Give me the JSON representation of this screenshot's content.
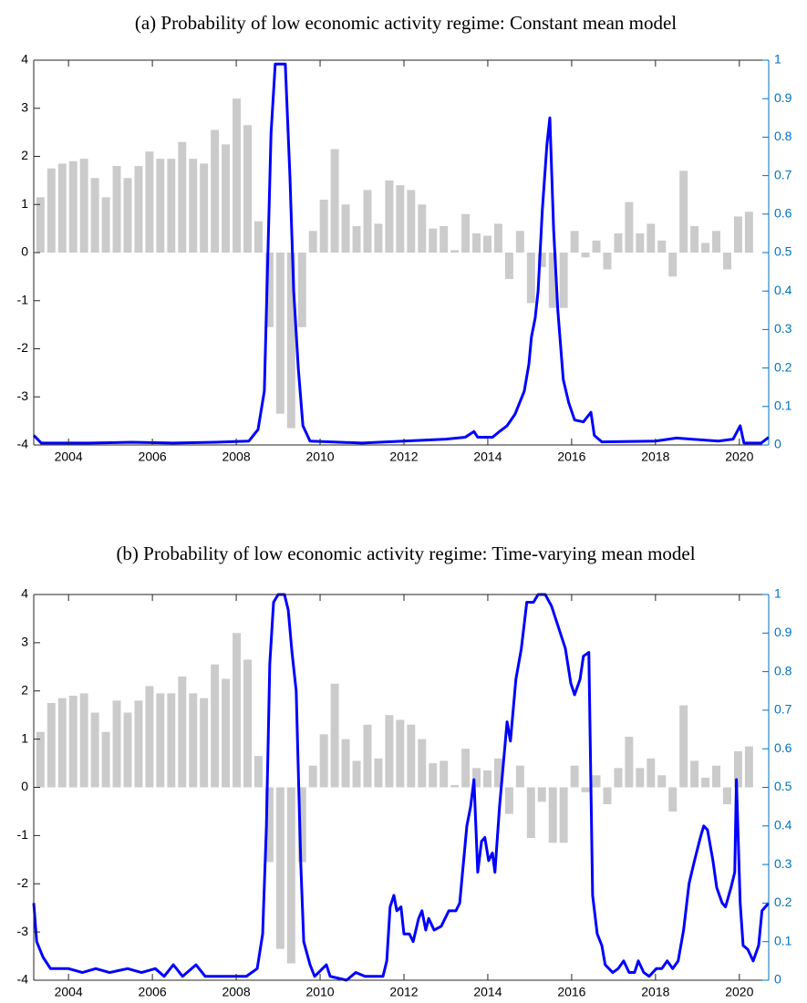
{
  "chart_data": [
    {
      "type": "combo",
      "title": "(a) Probability of low economic activity regime: Constant mean model",
      "xlim": [
        2003.17,
        2020.7
      ],
      "xticks": [
        2004,
        2006,
        2008,
        2010,
        2012,
        2014,
        2016,
        2018,
        2020
      ],
      "ylim": [
        -4,
        4
      ],
      "yticks": [
        -4,
        -3,
        -2,
        -1,
        0,
        1,
        2,
        3,
        4
      ],
      "y2lim": [
        0,
        1
      ],
      "y2ticks": [
        0,
        0.1,
        0.2,
        0.3,
        0.4,
        0.5,
        0.6,
        0.7,
        0.8,
        0.9,
        1
      ],
      "y2color": "#0072bd",
      "series": [
        {
          "type": "bar",
          "color": "#cbcbcb",
          "x": [
            2003.33,
            2003.59,
            2003.85,
            2004.11,
            2004.37,
            2004.63,
            2004.89,
            2005.15,
            2005.41,
            2005.67,
            2005.93,
            2006.19,
            2006.45,
            2006.71,
            2006.97,
            2007.23,
            2007.49,
            2007.75,
            2008.01,
            2008.27,
            2008.53,
            2008.79,
            2009.05,
            2009.31,
            2009.57,
            2009.83,
            2010.09,
            2010.35,
            2010.61,
            2010.87,
            2011.13,
            2011.39,
            2011.65,
            2011.91,
            2012.17,
            2012.43,
            2012.69,
            2012.95,
            2013.21,
            2013.47,
            2013.73,
            2013.99,
            2014.25,
            2014.51,
            2014.77,
            2015.03,
            2015.29,
            2015.55,
            2015.81,
            2016.07,
            2016.33,
            2016.59,
            2016.85,
            2017.11,
            2017.37,
            2017.63,
            2017.89,
            2018.15,
            2018.41,
            2018.67,
            2018.93,
            2019.19,
            2019.45,
            2019.71,
            2019.97,
            2020.23
          ],
          "values": [
            1.15,
            1.75,
            1.85,
            1.9,
            1.95,
            1.55,
            1.15,
            1.8,
            1.55,
            1.8,
            2.1,
            1.95,
            1.95,
            2.3,
            1.95,
            1.85,
            2.55,
            2.25,
            3.2,
            2.65,
            0.65,
            -1.55,
            -3.35,
            -3.65,
            -1.55,
            0.45,
            1.1,
            2.15,
            1.0,
            0.55,
            1.3,
            0.6,
            1.5,
            1.4,
            1.3,
            1.0,
            0.5,
            0.55,
            0.05,
            0.8,
            0.4,
            0.35,
            0.6,
            -0.55,
            0.45,
            -1.05,
            -0.3,
            -1.15,
            -1.15,
            0.45,
            -0.1,
            0.25,
            -0.35,
            0.4,
            1.05,
            0.4,
            0.6,
            0.25,
            -0.5,
            1.7,
            0.55,
            0.2,
            0.45,
            -0.35,
            0.75,
            0.85
          ]
        },
        {
          "type": "line",
          "axis": "y2",
          "color": "#0000ff",
          "x": [
            2003.17,
            2003.35,
            2004.5,
            2005.5,
            2006.5,
            2007.5,
            2008.3,
            2008.52,
            2008.67,
            2008.83,
            2008.93,
            2009.17,
            2009.28,
            2009.37,
            2009.48,
            2009.59,
            2009.76,
            2011,
            2012,
            2013,
            2013.46,
            2013.67,
            2013.76,
            2014.11,
            2014.28,
            2014.46,
            2014.65,
            2014.87,
            2014.98,
            2015.04,
            2015.13,
            2015.2,
            2015.3,
            2015.41,
            2015.48,
            2015.57,
            2015.67,
            2015.8,
            2015.93,
            2016.07,
            2016.28,
            2016.46,
            2016.54,
            2016.72,
            2018,
            2018.5,
            2019.5,
            2019.85,
            2020.02,
            2020.11,
            2020.52,
            2020.7
          ],
          "values": [
            0.025,
            0.005,
            0.005,
            0.007,
            0.005,
            0.007,
            0.01,
            0.04,
            0.14,
            0.81,
            0.99,
            0.99,
            0.7,
            0.4,
            0.2,
            0.05,
            0.01,
            0.005,
            0.01,
            0.015,
            0.02,
            0.035,
            0.02,
            0.02,
            0.035,
            0.05,
            0.08,
            0.14,
            0.21,
            0.28,
            0.33,
            0.4,
            0.61,
            0.78,
            0.85,
            0.56,
            0.35,
            0.17,
            0.11,
            0.065,
            0.06,
            0.085,
            0.025,
            0.008,
            0.01,
            0.018,
            0.01,
            0.015,
            0.05,
            0.005,
            0.005,
            0.02
          ]
        }
      ]
    },
    {
      "type": "combo",
      "title": "(b) Probability of low economic activity regime: Time-varying mean model",
      "xlim": [
        2003.17,
        2020.7
      ],
      "xticks": [
        2004,
        2006,
        2008,
        2010,
        2012,
        2014,
        2016,
        2018,
        2020
      ],
      "ylim": [
        -4,
        4
      ],
      "yticks": [
        -4,
        -3,
        -2,
        -1,
        0,
        1,
        2,
        3,
        4
      ],
      "y2lim": [
        0,
        1
      ],
      "y2ticks": [
        0,
        0.1,
        0.2,
        0.3,
        0.4,
        0.5,
        0.6,
        0.7,
        0.8,
        0.9,
        1
      ],
      "y2color": "#0072bd",
      "series": [
        {
          "type": "bar",
          "color": "#cbcbcb",
          "x": [
            2003.33,
            2003.59,
            2003.85,
            2004.11,
            2004.37,
            2004.63,
            2004.89,
            2005.15,
            2005.41,
            2005.67,
            2005.93,
            2006.19,
            2006.45,
            2006.71,
            2006.97,
            2007.23,
            2007.49,
            2007.75,
            2008.01,
            2008.27,
            2008.53,
            2008.79,
            2009.05,
            2009.31,
            2009.57,
            2009.83,
            2010.09,
            2010.35,
            2010.61,
            2010.87,
            2011.13,
            2011.39,
            2011.65,
            2011.91,
            2012.17,
            2012.43,
            2012.69,
            2012.95,
            2013.21,
            2013.47,
            2013.73,
            2013.99,
            2014.25,
            2014.51,
            2014.77,
            2015.03,
            2015.29,
            2015.55,
            2015.81,
            2016.07,
            2016.33,
            2016.59,
            2016.85,
            2017.11,
            2017.37,
            2017.63,
            2017.89,
            2018.15,
            2018.41,
            2018.67,
            2018.93,
            2019.19,
            2019.45,
            2019.71,
            2019.97,
            2020.23
          ],
          "values": [
            1.15,
            1.75,
            1.85,
            1.9,
            1.95,
            1.55,
            1.15,
            1.8,
            1.55,
            1.8,
            2.1,
            1.95,
            1.95,
            2.3,
            1.95,
            1.85,
            2.55,
            2.25,
            3.2,
            2.65,
            0.65,
            -1.55,
            -3.35,
            -3.65,
            -1.55,
            0.45,
            1.1,
            2.15,
            1.0,
            0.55,
            1.3,
            0.6,
            1.5,
            1.4,
            1.3,
            1.0,
            0.5,
            0.55,
            0.05,
            0.8,
            0.4,
            0.35,
            0.6,
            -0.55,
            0.45,
            -1.05,
            -0.3,
            -1.15,
            -1.15,
            0.45,
            -0.1,
            0.25,
            -0.35,
            0.4,
            1.05,
            0.4,
            0.6,
            0.25,
            -0.5,
            1.7,
            0.55,
            0.2,
            0.45,
            -0.35,
            0.75,
            0.85
          ]
        },
        {
          "type": "line",
          "axis": "y2",
          "color": "#0000ff",
          "x": [
            2003.17,
            2003.24,
            2003.39,
            2003.57,
            2004.0,
            2004.33,
            2004.65,
            2004.98,
            2005.41,
            2005.74,
            2006.07,
            2006.28,
            2006.5,
            2006.72,
            2007.04,
            2007.26,
            2007.8,
            2008.24,
            2008.5,
            2008.63,
            2008.72,
            2008.8,
            2008.89,
            2009.0,
            2009.15,
            2009.24,
            2009.33,
            2009.43,
            2009.54,
            2009.61,
            2009.76,
            2009.87,
            2010.15,
            2010.24,
            2010.63,
            2010.85,
            2011.07,
            2011.5,
            2011.59,
            2011.67,
            2011.76,
            2011.83,
            2011.93,
            2012.0,
            2012.13,
            2012.22,
            2012.35,
            2012.43,
            2012.52,
            2012.59,
            2012.72,
            2012.89,
            2013.07,
            2013.24,
            2013.33,
            2013.5,
            2013.59,
            2013.67,
            2013.76,
            2013.85,
            2013.93,
            2014.02,
            2014.11,
            2014.17,
            2014.28,
            2014.46,
            2014.54,
            2014.67,
            2014.8,
            2014.93,
            2015.09,
            2015.2,
            2015.37,
            2015.52,
            2015.67,
            2015.85,
            2015.98,
            2016.07,
            2016.2,
            2016.28,
            2016.41,
            2016.5,
            2016.61,
            2016.72,
            2016.8,
            2016.98,
            2017.11,
            2017.24,
            2017.37,
            2017.5,
            2017.59,
            2017.72,
            2017.85,
            2018.02,
            2018.15,
            2018.28,
            2018.41,
            2018.54,
            2018.67,
            2018.8,
            2018.93,
            2019.07,
            2019.15,
            2019.24,
            2019.37,
            2019.46,
            2019.59,
            2019.67,
            2019.8,
            2019.89,
            2019.93,
            2020.02,
            2020.09,
            2020.2,
            2020.33,
            2020.46,
            2020.54,
            2020.7
          ],
          "values": [
            0.2,
            0.1,
            0.06,
            0.03,
            0.03,
            0.02,
            0.03,
            0.02,
            0.03,
            0.02,
            0.03,
            0.01,
            0.04,
            0.01,
            0.04,
            0.01,
            0.01,
            0.01,
            0.03,
            0.12,
            0.4,
            0.82,
            0.98,
            1.0,
            1.0,
            0.96,
            0.85,
            0.75,
            0.3,
            0.1,
            0.04,
            0.01,
            0.04,
            0.01,
            0.0,
            0.02,
            0.01,
            0.01,
            0.05,
            0.19,
            0.22,
            0.18,
            0.19,
            0.12,
            0.12,
            0.1,
            0.16,
            0.18,
            0.13,
            0.16,
            0.13,
            0.14,
            0.18,
            0.18,
            0.2,
            0.4,
            0.45,
            0.52,
            0.28,
            0.36,
            0.37,
            0.31,
            0.33,
            0.28,
            0.45,
            0.67,
            0.62,
            0.78,
            0.86,
            0.98,
            0.98,
            1.0,
            1.0,
            0.97,
            0.92,
            0.86,
            0.77,
            0.74,
            0.78,
            0.84,
            0.85,
            0.22,
            0.12,
            0.09,
            0.04,
            0.02,
            0.03,
            0.05,
            0.02,
            0.02,
            0.05,
            0.02,
            0.01,
            0.03,
            0.03,
            0.05,
            0.03,
            0.05,
            0.13,
            0.25,
            0.31,
            0.37,
            0.4,
            0.39,
            0.31,
            0.24,
            0.2,
            0.19,
            0.24,
            0.28,
            0.52,
            0.2,
            0.09,
            0.08,
            0.05,
            0.09,
            0.18,
            0.2
          ]
        }
      ]
    }
  ]
}
